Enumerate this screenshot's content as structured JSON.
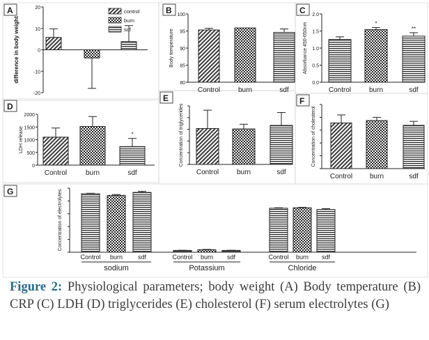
{
  "figure": {
    "caption_label": "Figure 2:",
    "caption_text": "Physiological parameters; body weight (A) Body temperature (B) CRP (C) LDH (D) triglycerides (E) cholesterol (F) serum electrolytes (G)"
  },
  "colors": {
    "bar_stroke": "#222222",
    "panel_border": "#444444",
    "text": "#1a1a1a",
    "caption_label": "#2a6b8c",
    "caption_text": "#3c3c3c"
  },
  "chart_data": [
    {
      "panel": "A",
      "type": "bar",
      "categories": [
        "control",
        "burn",
        "sdf"
      ],
      "values": [
        5.8,
        -3.8,
        3.8
      ],
      "errors": [
        4.0,
        14.2,
        7.5
      ],
      "ylabel": "difference in body weight",
      "ylim": [
        -20,
        20
      ],
      "yticks": [
        "-20",
        "-10",
        "0",
        "10",
        "20"
      ],
      "legend": [
        "control",
        "burn",
        "sdf"
      ],
      "legend_position": "top-right",
      "patterns": [
        "diagonal",
        "checker",
        "horizontal"
      ]
    },
    {
      "panel": "B",
      "type": "bar",
      "categories": [
        "Control",
        "burn",
        "sdf"
      ],
      "values": [
        95.3,
        95.9,
        94.6
      ],
      "errors": [
        0.5,
        0.0,
        1.0
      ],
      "ylabel": "Body temperature",
      "ylim": [
        80,
        100
      ],
      "yticks": [
        "80",
        "85",
        "90",
        "95",
        "100"
      ],
      "patterns": [
        "diagonal",
        "checker",
        "horizontal"
      ]
    },
    {
      "panel": "C",
      "type": "bar",
      "categories": [
        "Control",
        "burn",
        "sdf"
      ],
      "values": [
        1.25,
        1.54,
        1.35
      ],
      "errors": [
        0.08,
        0.06,
        0.1
      ],
      "annotations": [
        "",
        "*",
        "**"
      ],
      "ylabel": "Absorbance 450-650nm",
      "ylim": [
        0,
        2.0
      ],
      "yticks": [
        "0.0",
        "0.5",
        "1.0",
        "1.5",
        "2.0"
      ],
      "patterns": [
        "horizontal",
        "checker",
        "horizontal"
      ]
    },
    {
      "panel": "D",
      "type": "bar",
      "categories": [
        "Control",
        "burn",
        "sdf"
      ],
      "values": [
        1100,
        1520,
        730
      ],
      "errors": [
        360,
        390,
        320
      ],
      "annotations": [
        "",
        "",
        "*"
      ],
      "ylabel": "LDH release",
      "ylim": [
        0,
        2000
      ],
      "yticks": [
        "0",
        "500",
        "1000",
        "1500",
        "2000"
      ],
      "patterns": [
        "diagonal",
        "checker",
        "horizontal"
      ]
    },
    {
      "panel": "E",
      "type": "bar",
      "categories": [
        "Control",
        "burn",
        "sdf"
      ],
      "values": [
        92,
        91,
        100
      ],
      "errors": [
        47,
        12,
        33
      ],
      "ylabel": "Concentration of triglycerides",
      "ylim": [
        0,
        150
      ],
      "patterns": [
        "diagonal",
        "checker",
        "horizontal"
      ]
    },
    {
      "panel": "F",
      "type": "bar",
      "categories": [
        "Control",
        "burn",
        "sdf"
      ],
      "values": [
        57,
        60,
        54
      ],
      "errors": [
        10,
        4,
        5
      ],
      "ylabel": "Concentration of cholesterol",
      "ylim": [
        0,
        80
      ],
      "patterns": [
        "diagonal",
        "checker",
        "horizontal"
      ]
    },
    {
      "panel": "G",
      "type": "bar",
      "groups": [
        "sodium",
        "Potassium",
        "Chloride"
      ],
      "categories": [
        "Control",
        "burn",
        "sdf"
      ],
      "series": [
        {
          "group": "sodium",
          "values": [
            137,
            133,
            140
          ],
          "errors": [
            1,
            2,
            2.5
          ]
        },
        {
          "group": "Potassium",
          "values": [
            4.3,
            5.8,
            4.3
          ],
          "errors": [
            0.3,
            0.8,
            0.3
          ]
        },
        {
          "group": "Chloride",
          "values": [
            103,
            104,
            100
          ],
          "errors": [
            1,
            1,
            2
          ]
        }
      ],
      "ylabel": "Concentration of electrolytes",
      "ylim": [
        0,
        150
      ],
      "patterns": [
        "horizontal",
        "checker",
        "horizontal"
      ]
    }
  ]
}
